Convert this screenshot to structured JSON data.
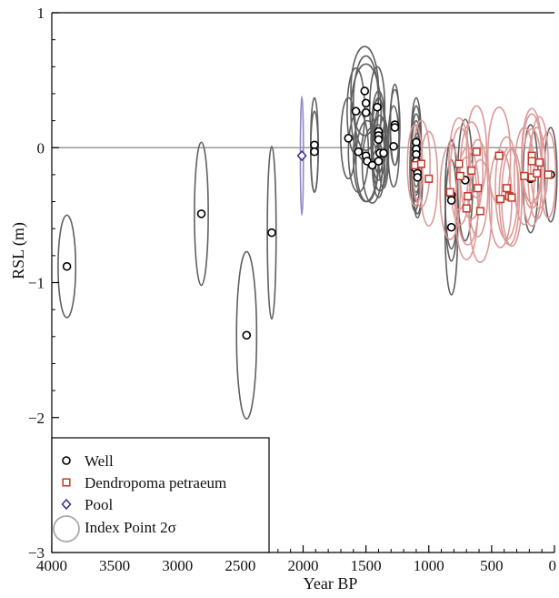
{
  "chart_data": {
    "type": "scatter",
    "xlabel": "Year BP",
    "ylabel": "RSL (m)",
    "xlim": [
      4000,
      0
    ],
    "ylim": [
      -3,
      1
    ],
    "x_ticks": [
      4000,
      3500,
      3000,
      2500,
      2000,
      1500,
      1000,
      500,
      0
    ],
    "y_ticks": [
      1,
      0,
      -1,
      -2,
      -3
    ],
    "x_tick_labels": [
      "4000",
      "3500",
      "3000",
      "2500",
      "2000",
      "1500",
      "1000",
      "500",
      "0"
    ],
    "y_tick_labels": [
      "1",
      "0",
      "−1",
      "−2",
      "−3"
    ],
    "reference_line_y": 0,
    "legend": {
      "placement": "bottom-left",
      "entries": [
        {
          "label": "Well",
          "marker": "circle",
          "color": "#000000"
        },
        {
          "label": "Dendropoma petraeum",
          "marker": "square",
          "color": "#c0392b"
        },
        {
          "label": "Pool",
          "marker": "diamond",
          "color": "#3a2a8c"
        },
        {
          "label": "Index Point 2σ",
          "marker": "ellipse",
          "color": "#aaaaaa"
        }
      ]
    },
    "colors": {
      "well_marker": "#000000",
      "well_ellipse": "#606060",
      "dendropoma_marker": "#c0392b",
      "dendropoma_ellipse": "#dc9a98",
      "pool_marker": "#3a2a8c",
      "pool_ellipse": "#8f8ac4",
      "zero_line": "#999999"
    },
    "series": [
      {
        "name": "Well",
        "points": [
          {
            "x": 3880,
            "y": -0.88,
            "ex": 70,
            "ey": 0.38
          },
          {
            "x": 2810,
            "y": -0.49,
            "ex": 55,
            "ey": 0.53
          },
          {
            "x": 2450,
            "y": -1.39,
            "ex": 80,
            "ey": 0.62
          },
          {
            "x": 2250,
            "y": -0.63,
            "ex": 35,
            "ey": 0.64
          },
          {
            "x": 1910,
            "y": 0.02,
            "ex": 30,
            "ey": 0.35
          },
          {
            "x": 1910,
            "y": -0.03,
            "ex": 30,
            "ey": 0.3
          },
          {
            "x": 1640,
            "y": 0.07,
            "ex": 60,
            "ey": 0.3
          },
          {
            "x": 1580,
            "y": 0.27,
            "ex": 70,
            "ey": 0.32
          },
          {
            "x": 1560,
            "y": -0.03,
            "ex": 80,
            "ey": 0.3
          },
          {
            "x": 1510,
            "y": 0.42,
            "ex": 110,
            "ey": 0.33
          },
          {
            "x": 1500,
            "y": 0.33,
            "ex": 100,
            "ey": 0.35
          },
          {
            "x": 1500,
            "y": 0.26,
            "ex": 120,
            "ey": 0.36
          },
          {
            "x": 1500,
            "y": -0.06,
            "ex": 100,
            "ey": 0.34
          },
          {
            "x": 1490,
            "y": -0.1,
            "ex": 90,
            "ey": 0.3
          },
          {
            "x": 1450,
            "y": -0.13,
            "ex": 80,
            "ey": 0.28
          },
          {
            "x": 1410,
            "y": 0.3,
            "ex": 60,
            "ey": 0.3
          },
          {
            "x": 1400,
            "y": 0.12,
            "ex": 55,
            "ey": 0.3
          },
          {
            "x": 1400,
            "y": 0.09,
            "ex": 50,
            "ey": 0.28
          },
          {
            "x": 1400,
            "y": 0.06,
            "ex": 60,
            "ey": 0.3
          },
          {
            "x": 1390,
            "y": -0.04,
            "ex": 60,
            "ey": 0.28
          },
          {
            "x": 1400,
            "y": -0.1,
            "ex": 50,
            "ey": 0.27
          },
          {
            "x": 1360,
            "y": -0.04,
            "ex": 40,
            "ey": 0.26
          },
          {
            "x": 1270,
            "y": 0.17,
            "ex": 35,
            "ey": 0.3
          },
          {
            "x": 1270,
            "y": 0.15,
            "ex": 40,
            "ey": 0.28
          },
          {
            "x": 1280,
            "y": 0.01,
            "ex": 45,
            "ey": 0.3
          },
          {
            "x": 1100,
            "y": 0.04,
            "ex": 40,
            "ey": 0.33
          },
          {
            "x": 1100,
            "y": -0.01,
            "ex": 40,
            "ey": 0.32
          },
          {
            "x": 1100,
            "y": -0.05,
            "ex": 40,
            "ey": 0.3
          },
          {
            "x": 1100,
            "y": -0.1,
            "ex": 40,
            "ey": 0.3
          },
          {
            "x": 1110,
            "y": -0.15,
            "ex": 40,
            "ey": 0.32
          },
          {
            "x": 1090,
            "y": -0.19,
            "ex": 40,
            "ey": 0.3
          },
          {
            "x": 1090,
            "y": -0.22,
            "ex": 40,
            "ey": 0.3
          },
          {
            "x": 820,
            "y": -0.35,
            "ex": 50,
            "ey": 0.4
          },
          {
            "x": 820,
            "y": -0.39,
            "ex": 50,
            "ey": 0.45
          },
          {
            "x": 820,
            "y": -0.59,
            "ex": 50,
            "ey": 0.5
          },
          {
            "x": 710,
            "y": -0.24,
            "ex": 60,
            "ey": 0.45
          },
          {
            "x": 190,
            "y": -0.23,
            "ex": 60,
            "ey": 0.4
          },
          {
            "x": 30,
            "y": -0.2,
            "ex": 50,
            "ey": 0.35
          }
        ]
      },
      {
        "name": "Dendropoma petraeum",
        "points": [
          {
            "x": 1110,
            "y": -0.13,
            "ex": 60,
            "ey": 0.3
          },
          {
            "x": 1060,
            "y": -0.12,
            "ex": 70,
            "ey": 0.32
          },
          {
            "x": 1000,
            "y": -0.23,
            "ex": 70,
            "ey": 0.35
          },
          {
            "x": 830,
            "y": -0.33,
            "ex": 80,
            "ey": 0.35
          },
          {
            "x": 760,
            "y": -0.12,
            "ex": 80,
            "ey": 0.34
          },
          {
            "x": 750,
            "y": -0.21,
            "ex": 80,
            "ey": 0.36
          },
          {
            "x": 700,
            "y": -0.45,
            "ex": 90,
            "ey": 0.38
          },
          {
            "x": 690,
            "y": -0.36,
            "ex": 90,
            "ey": 0.36
          },
          {
            "x": 660,
            "y": -0.17,
            "ex": 90,
            "ey": 0.36
          },
          {
            "x": 620,
            "y": -0.03,
            "ex": 80,
            "ey": 0.34
          },
          {
            "x": 610,
            "y": -0.3,
            "ex": 80,
            "ey": 0.36
          },
          {
            "x": 590,
            "y": -0.47,
            "ex": 90,
            "ey": 0.38
          },
          {
            "x": 440,
            "y": -0.06,
            "ex": 90,
            "ey": 0.36
          },
          {
            "x": 430,
            "y": -0.38,
            "ex": 90,
            "ey": 0.36
          },
          {
            "x": 380,
            "y": -0.3,
            "ex": 90,
            "ey": 0.38
          },
          {
            "x": 360,
            "y": -0.36,
            "ex": 80,
            "ey": 0.36
          },
          {
            "x": 340,
            "y": -0.37,
            "ex": 80,
            "ey": 0.36
          },
          {
            "x": 240,
            "y": -0.21,
            "ex": 80,
            "ey": 0.36
          },
          {
            "x": 180,
            "y": -0.06,
            "ex": 80,
            "ey": 0.35
          },
          {
            "x": 180,
            "y": -0.1,
            "ex": 80,
            "ey": 0.35
          },
          {
            "x": 180,
            "y": -0.22,
            "ex": 80,
            "ey": 0.36
          },
          {
            "x": 140,
            "y": -0.19,
            "ex": 70,
            "ey": 0.34
          },
          {
            "x": 120,
            "y": -0.11,
            "ex": 70,
            "ey": 0.34
          },
          {
            "x": 50,
            "y": -0.2,
            "ex": 60,
            "ey": 0.32
          }
        ]
      },
      {
        "name": "Pool",
        "points": [
          {
            "x": 2010,
            "y": -0.06,
            "ex": 12,
            "ey": 0.44
          }
        ]
      }
    ]
  }
}
